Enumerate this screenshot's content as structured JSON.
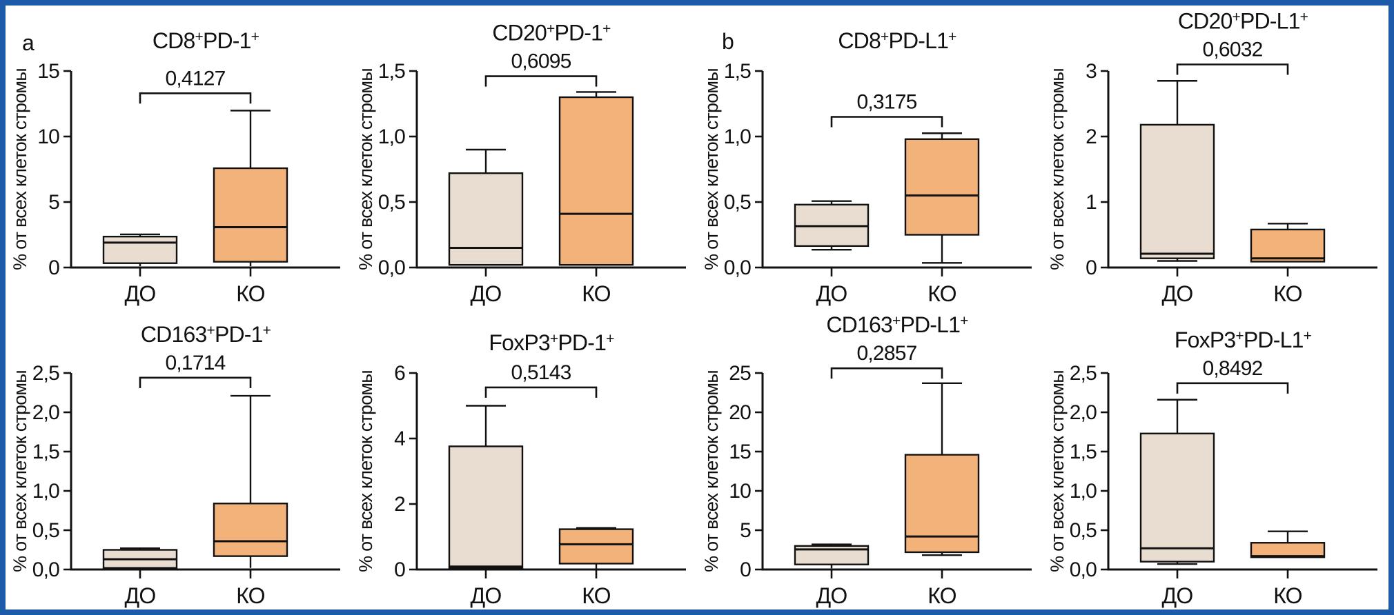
{
  "figure": {
    "background": "#ffffff",
    "frame_border_color": "#1d5ba9"
  },
  "panel_labels": [
    "a",
    "b"
  ],
  "colors": {
    "box_do": "#e9ddd1",
    "box_ko": "#f4b27b",
    "stroke": "#111111"
  },
  "axis_label": "% от всех клеток стромы",
  "categories": [
    "ДО",
    "КО"
  ],
  "chart_data": [
    {
      "id": "cd8-pd-1",
      "panel": "a",
      "type": "box",
      "title": "CD8+PD-1+",
      "p_value": "0,4127",
      "ylabel": "% от всех клеток стромы",
      "ymax": 15,
      "bracket_y": 13.3,
      "ticks": [
        {
          "v": 0,
          "label": "0"
        },
        {
          "v": 5,
          "label": "5"
        },
        {
          "v": 10,
          "label": "10"
        },
        {
          "v": 15,
          "label": "15"
        }
      ],
      "boxes": [
        {
          "category": "ДО",
          "min": 0.1,
          "q1": 0.33,
          "median": 1.9,
          "q3": 2.36,
          "max": 2.53,
          "cap_top": true,
          "cap_bottom": false
        },
        {
          "category": "КО",
          "min": 0.1,
          "q1": 0.44,
          "median": 3.08,
          "q3": 7.58,
          "max": 11.98,
          "cap_top": true,
          "cap_bottom": false
        }
      ]
    },
    {
      "id": "cd20-pd-1",
      "panel": "a",
      "type": "box",
      "title": "CD20+PD-1+",
      "p_value": "0,6095",
      "ylabel": "% от всех клеток стромы",
      "ymax": 1.5,
      "bracket_y": 1.46,
      "ticks": [
        {
          "v": 0,
          "label": "0,0"
        },
        {
          "v": 0.5,
          "label": "0,5"
        },
        {
          "v": 1,
          "label": "1,0"
        },
        {
          "v": 1.5,
          "label": "1,5"
        }
      ],
      "boxes": [
        {
          "category": "ДО",
          "min": 0.02,
          "q1": 0.02,
          "median": 0.15,
          "q3": 0.72,
          "max": 0.9,
          "cap_top": true,
          "cap_bottom": false
        },
        {
          "category": "КО",
          "min": 0.02,
          "q1": 0.02,
          "median": 0.41,
          "q3": 1.3,
          "max": 1.34,
          "cap_top": true,
          "cap_bottom": false
        }
      ]
    },
    {
      "id": "cd8-pd-l1",
      "panel": "b",
      "type": "box",
      "title": "CD8+PD-L1+",
      "p_value": "0,3175",
      "ylabel": "% от всех клеток стромы",
      "ymax": 1.5,
      "bracket_y": 1.15,
      "ticks": [
        {
          "v": 0,
          "label": "0,0"
        },
        {
          "v": 0.5,
          "label": "0,5"
        },
        {
          "v": 1,
          "label": "1,0"
        },
        {
          "v": 1.5,
          "label": "1,5"
        }
      ],
      "boxes": [
        {
          "category": "ДО",
          "min": 0.136,
          "q1": 0.164,
          "median": 0.316,
          "q3": 0.48,
          "max": 0.507,
          "cap_top": true,
          "cap_bottom": true
        },
        {
          "category": "КО",
          "min": 0.035,
          "q1": 0.25,
          "median": 0.55,
          "q3": 0.98,
          "max": 1.025,
          "cap_top": true,
          "cap_bottom": true
        }
      ]
    },
    {
      "id": "cd20-pd-l1",
      "panel": "b",
      "type": "box",
      "title": "CD20+PD-L1+",
      "p_value": "0,6032",
      "ylabel": "% от всех клеток стромы",
      "ymax": 3,
      "bracket_y": 3.1,
      "ticks": [
        {
          "v": 0,
          "label": "0"
        },
        {
          "v": 1,
          "label": "1"
        },
        {
          "v": 2,
          "label": "2"
        },
        {
          "v": 3,
          "label": "3"
        }
      ],
      "boxes": [
        {
          "category": "ДО",
          "min": 0.1,
          "q1": 0.14,
          "median": 0.21,
          "q3": 2.18,
          "max": 2.85,
          "cap_top": true,
          "cap_bottom": true
        },
        {
          "category": "КО",
          "min": 0.09,
          "q1": 0.09,
          "median": 0.14,
          "q3": 0.58,
          "max": 0.67,
          "cap_top": true,
          "cap_bottom": false
        }
      ]
    },
    {
      "id": "cd163-pd-1",
      "panel": "a",
      "type": "box",
      "title": "CD163+PD-1+",
      "p_value": "0,1714",
      "ylabel": "% от всех клеток стромы",
      "ymax": 2.5,
      "bracket_y": 2.44,
      "ticks": [
        {
          "v": 0,
          "label": "0,0"
        },
        {
          "v": 0.5,
          "label": "0,5"
        },
        {
          "v": 1,
          "label": "1,0"
        },
        {
          "v": 1.5,
          "label": "1,5"
        },
        {
          "v": 2,
          "label": "2,0"
        },
        {
          "v": 2.5,
          "label": "2,5"
        }
      ],
      "boxes": [
        {
          "category": "ДО",
          "min": 0.02,
          "q1": 0.02,
          "median": 0.13,
          "q3": 0.25,
          "max": 0.27,
          "cap_top": true,
          "cap_bottom": false
        },
        {
          "category": "КО",
          "min": 0.02,
          "q1": 0.17,
          "median": 0.36,
          "q3": 0.84,
          "max": 2.21,
          "cap_top": true,
          "cap_bottom": false
        }
      ]
    },
    {
      "id": "foxp3-pd-1",
      "panel": "a",
      "type": "box",
      "title": "FoxP3+PD-1+",
      "p_value": "0,5143",
      "ylabel": "% от всех клеток стромы",
      "ymax": 6,
      "bracket_y": 5.56,
      "ticks": [
        {
          "v": 0,
          "label": "0"
        },
        {
          "v": 2,
          "label": "2"
        },
        {
          "v": 4,
          "label": "4"
        },
        {
          "v": 6,
          "label": "6"
        }
      ],
      "boxes": [
        {
          "category": "ДО",
          "min": 0.04,
          "q1": 0.04,
          "median": 0.09,
          "q3": 3.76,
          "max": 5.0,
          "cap_top": true,
          "cap_bottom": false
        },
        {
          "category": "КО",
          "min": 0.03,
          "q1": 0.18,
          "median": 0.77,
          "q3": 1.23,
          "max": 1.27,
          "cap_top": true,
          "cap_bottom": false
        }
      ]
    },
    {
      "id": "cd163-pd-l1",
      "panel": "b",
      "type": "box",
      "title": "CD163+PD-L1+",
      "p_value": "0,2857",
      "ylabel": "% от всех клеток стромы",
      "ymax": 25,
      "bracket_y": 25.6,
      "ticks": [
        {
          "v": 0,
          "label": "0"
        },
        {
          "v": 5,
          "label": "5"
        },
        {
          "v": 10,
          "label": "10"
        },
        {
          "v": 15,
          "label": "15"
        },
        {
          "v": 20,
          "label": "20"
        },
        {
          "v": 25,
          "label": "25"
        }
      ],
      "boxes": [
        {
          "category": "ДО",
          "min": 0.15,
          "q1": 0.64,
          "median": 2.56,
          "q3": 3.0,
          "max": 3.2,
          "cap_top": true,
          "cap_bottom": false
        },
        {
          "category": "КО",
          "min": 1.83,
          "q1": 2.2,
          "median": 4.2,
          "q3": 14.6,
          "max": 23.7,
          "cap_top": true,
          "cap_bottom": true
        }
      ]
    },
    {
      "id": "foxp3-pd-l1",
      "panel": "b",
      "type": "box",
      "title": "FoxP3+PD-L1+",
      "p_value": "0,8492",
      "ylabel": "% от всех клеток стромы",
      "ymax": 2.5,
      "bracket_y": 2.37,
      "ticks": [
        {
          "v": 0,
          "label": "0,0"
        },
        {
          "v": 0.5,
          "label": "0,5"
        },
        {
          "v": 1,
          "label": "1,0"
        },
        {
          "v": 1.5,
          "label": "1,5"
        },
        {
          "v": 2,
          "label": "2,0"
        },
        {
          "v": 2.5,
          "label": "2,5"
        }
      ],
      "boxes": [
        {
          "category": "ДО",
          "min": 0.07,
          "q1": 0.1,
          "median": 0.27,
          "q3": 1.73,
          "max": 2.16,
          "cap_top": true,
          "cap_bottom": true
        },
        {
          "category": "КО",
          "min": 0.156,
          "q1": 0.156,
          "median": 0.17,
          "q3": 0.34,
          "max": 0.485,
          "cap_top": true,
          "cap_bottom": false
        }
      ]
    }
  ]
}
